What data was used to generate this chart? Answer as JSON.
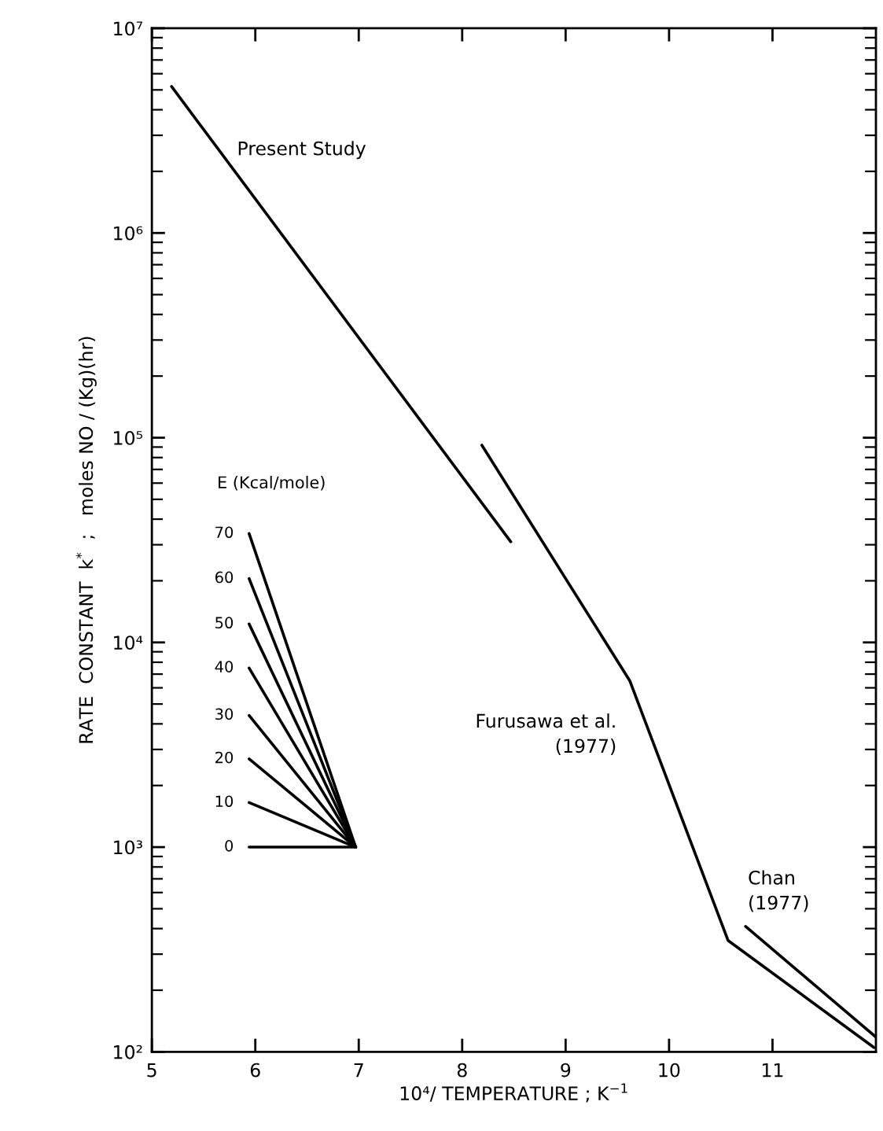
{
  "chart_data": {
    "type": "line",
    "xlabel": "10⁴/ TEMPERATURE ; K$^{−1}$",
    "ylabel": "RATE  CONSTANT  k$^{*}$  ;   moles NO / (Kg)(hr)",
    "log": "y",
    "xlim": [
      5,
      12
    ],
    "ylim": [
      100,
      10000000
    ],
    "xticks": [
      5,
      6,
      7,
      8,
      9,
      10,
      11
    ],
    "yticks": [
      {
        "value": 100,
        "label": "10²"
      },
      {
        "value": 1000,
        "label": "10³"
      },
      {
        "value": 10000,
        "label": "10⁴"
      },
      {
        "value": 100000,
        "label": "10⁵"
      },
      {
        "value": 1000000,
        "label": "10⁶"
      },
      {
        "value": 10000000,
        "label": "10⁷"
      }
    ],
    "grid": false,
    "legend": false,
    "marker": "none",
    "line_style": "solid",
    "annotations": [
      "E (Kcal/mole)"
    ],
    "series": [
      {
        "name": "Present Study",
        "color": "#000000",
        "x": [
          5.19,
          8.47
        ],
        "values": [
          5200000,
          31000
        ]
      },
      {
        "name": "Furusawa et al.\n(1977)",
        "color": "#000000",
        "x": [
          8.19,
          9.62,
          10.57,
          11.98
        ],
        "values": [
          92000,
          6500,
          350,
          105
        ]
      },
      {
        "name": "Chan\n(1977)",
        "color": "#000000",
        "x": [
          10.74,
          12.0
        ],
        "values": [
          410,
          118
        ]
      },
      {
        "name": "70",
        "color": "#000000",
        "x": [
          5.94,
          6.97
        ],
        "values": [
          34000,
          1000
        ]
      },
      {
        "name": "60",
        "color": "#000000",
        "x": [
          5.94,
          6.97
        ],
        "values": [
          20500,
          1000
        ]
      },
      {
        "name": "50",
        "color": "#000000",
        "x": [
          5.94,
          6.97
        ],
        "values": [
          12300,
          1000
        ]
      },
      {
        "name": "40",
        "color": "#000000",
        "x": [
          5.94,
          6.97
        ],
        "values": [
          7500,
          1000
        ]
      },
      {
        "name": "30",
        "color": "#000000",
        "x": [
          5.94,
          6.97
        ],
        "values": [
          4400,
          1000
        ]
      },
      {
        "name": "20",
        "color": "#000000",
        "x": [
          5.94,
          6.97
        ],
        "values": [
          2700,
          1000
        ]
      },
      {
        "name": "10",
        "color": "#000000",
        "x": [
          5.94,
          6.97
        ],
        "values": [
          1650,
          1000
        ]
      },
      {
        "name": "0",
        "color": "#000000",
        "x": [
          5.94,
          6.97
        ],
        "values": [
          1000,
          1000
        ]
      }
    ]
  }
}
